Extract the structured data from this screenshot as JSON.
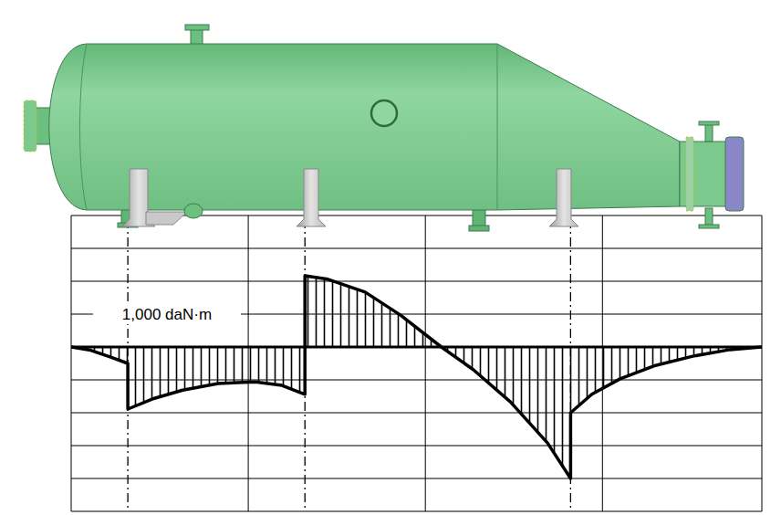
{
  "chart_data": {
    "type": "line",
    "annotations": [
      {
        "text": "1,000 daN·m",
        "y": 1000
      }
    ],
    "x": [
      0,
      0.11,
      0.22,
      0.32,
      0.32,
      0.47,
      0.63,
      0.83,
      1.04,
      1.19,
      1.32,
      1.32,
      1.45,
      1.66,
      1.86,
      2.09,
      2.27,
      2.48,
      2.69,
      2.82,
      2.82,
      2.94,
      3.1,
      3.3,
      3.51,
      3.72,
      3.9
    ],
    "series": [
      {
        "color": "#000000",
        "values": [
          0,
          -100,
          -300,
          -500,
          -1890,
          -1560,
          -1310,
          -1110,
          -1060,
          -1170,
          -1440,
          2170,
          2060,
          1670,
          970,
          0,
          -690,
          -1670,
          -2920,
          -4000,
          -2000,
          -1440,
          -970,
          -560,
          -280,
          -80,
          0
        ]
      }
    ],
    "supports": [
      0.32,
      1.32,
      2.82
    ],
    "xlim": [
      0,
      3.9
    ],
    "xticks": [
      0,
      1,
      2,
      3,
      3.9
    ],
    "ylim": [
      -5000,
      4000
    ],
    "yticks": [
      -5000,
      -4000,
      -3000,
      -2000,
      -1000,
      0,
      1000,
      2000,
      3000,
      4000
    ],
    "grid": true,
    "tick_labels": false
  }
}
